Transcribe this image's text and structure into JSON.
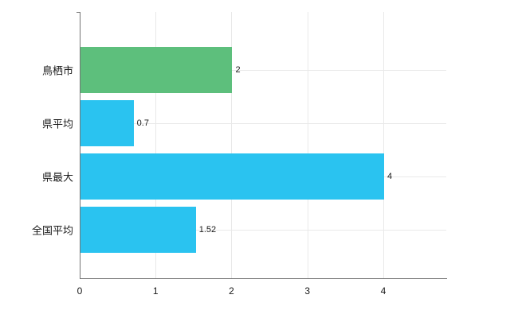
{
  "chart_data": {
    "type": "bar",
    "orientation": "horizontal",
    "title": "",
    "categories": [
      "鳥栖市",
      "県平均",
      "県最大",
      "全国平均"
    ],
    "values": [
      2,
      0.7,
      4,
      1.52
    ],
    "value_labels": [
      "2",
      "0.7",
      "4",
      "1.52"
    ],
    "bar_colors": [
      "#5dbf7c",
      "#2ac3f0",
      "#2ac3f0",
      "#2ac3f0"
    ],
    "xlim": [
      0,
      4.83
    ],
    "xticks": [
      0,
      1,
      2,
      3,
      4
    ],
    "grid": true,
    "legend": "none",
    "colors": {
      "background": "#ffffff",
      "gridline": "#e9e9e9",
      "axis": "#737373",
      "text": "#1a1a1a"
    }
  }
}
